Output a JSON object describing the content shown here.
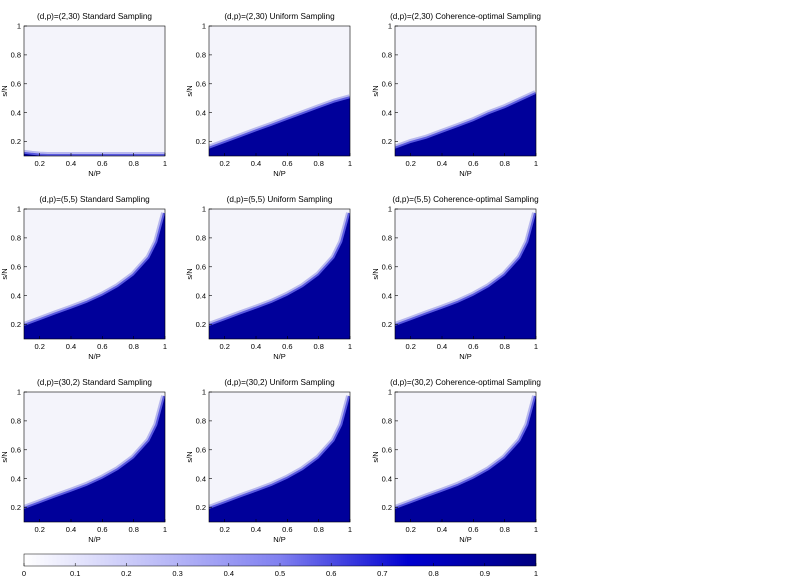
{
  "figure": {
    "colorbar_ticks": [
      "0",
      "0.1",
      "0.2",
      "0.3",
      "0.4",
      "0.5",
      "0.6",
      "0.7",
      "0.8",
      "0.9",
      "1"
    ],
    "colormap": {
      "low": "#ffffff",
      "high": "#000080"
    }
  },
  "chart_data": [
    {
      "type": "heatmap",
      "title": "(d,p)=(2,30) Standard Sampling",
      "xlabel": "N/P",
      "ylabel": "s/N",
      "xlim": [
        0.1,
        1
      ],
      "ylim": [
        0.1,
        1
      ],
      "xticks": [
        "0.2",
        "0.4",
        "0.6",
        "0.8",
        "1"
      ],
      "yticks": [
        "0.2",
        "0.4",
        "0.6",
        "0.8",
        "1"
      ],
      "recovery_boundary": {
        "x": [
          0.1,
          0.15,
          0.2,
          0.25,
          0.3,
          1.0
        ],
        "y": [
          0.115,
          0.108,
          0.103,
          0.1,
          0.1,
          0.1
        ]
      }
    },
    {
      "type": "heatmap",
      "title": "(d,p)=(2,30) Uniform Sampling",
      "xlabel": "N/P",
      "ylabel": "s/N",
      "xlim": [
        0.1,
        1
      ],
      "ylim": [
        0.1,
        1
      ],
      "xticks": [
        "0.2",
        "0.4",
        "0.6",
        "0.8",
        "1"
      ],
      "yticks": [
        "0.2",
        "0.4",
        "0.6",
        "0.8",
        "1"
      ],
      "recovery_boundary": {
        "x": [
          0.1,
          0.2,
          0.3,
          0.4,
          0.5,
          0.6,
          0.7,
          0.8,
          0.9,
          1.0
        ],
        "y": [
          0.15,
          0.19,
          0.23,
          0.27,
          0.31,
          0.35,
          0.39,
          0.43,
          0.47,
          0.5
        ]
      }
    },
    {
      "type": "heatmap",
      "title": "(d,p)=(2,30) Coherence-optimal Sampling",
      "xlabel": "N/P",
      "ylabel": "s/N",
      "xlim": [
        0.1,
        1
      ],
      "ylim": [
        0.1,
        1
      ],
      "xticks": [
        "0.2",
        "0.4",
        "0.6",
        "0.8",
        "1"
      ],
      "yticks": [
        "0.2",
        "0.4",
        "0.6",
        "0.8",
        "1"
      ],
      "recovery_boundary": {
        "x": [
          0.1,
          0.2,
          0.3,
          0.4,
          0.5,
          0.6,
          0.7,
          0.8,
          0.9,
          1.0
        ],
        "y": [
          0.15,
          0.19,
          0.22,
          0.26,
          0.3,
          0.34,
          0.39,
          0.43,
          0.48,
          0.53
        ]
      }
    },
    {
      "type": "heatmap",
      "title": "(d,p)=(5,5) Standard Sampling",
      "xlabel": "N/P",
      "ylabel": "s/N",
      "xlim": [
        0.1,
        1
      ],
      "ylim": [
        0.1,
        1
      ],
      "xticks": [
        "0.2",
        "0.4",
        "0.6",
        "0.8",
        "1"
      ],
      "yticks": [
        "0.2",
        "0.4",
        "0.6",
        "0.8",
        "1"
      ],
      "recovery_boundary": {
        "x": [
          0.1,
          0.2,
          0.3,
          0.4,
          0.5,
          0.6,
          0.7,
          0.8,
          0.9,
          0.95,
          1.0
        ],
        "y": [
          0.19,
          0.23,
          0.27,
          0.31,
          0.35,
          0.4,
          0.46,
          0.54,
          0.66,
          0.77,
          0.97
        ]
      }
    },
    {
      "type": "heatmap",
      "title": "(d,p)=(5,5) Uniform Sampling",
      "xlabel": "N/P",
      "ylabel": "s/N",
      "xlim": [
        0.1,
        1
      ],
      "ylim": [
        0.1,
        1
      ],
      "xticks": [
        "0.2",
        "0.4",
        "0.6",
        "0.8",
        "1"
      ],
      "yticks": [
        "0.2",
        "0.4",
        "0.6",
        "0.8",
        "1"
      ],
      "recovery_boundary": {
        "x": [
          0.1,
          0.2,
          0.3,
          0.4,
          0.5,
          0.6,
          0.7,
          0.8,
          0.9,
          0.95,
          1.0
        ],
        "y": [
          0.19,
          0.23,
          0.27,
          0.31,
          0.35,
          0.4,
          0.46,
          0.54,
          0.66,
          0.77,
          0.97
        ]
      }
    },
    {
      "type": "heatmap",
      "title": "(d,p)=(5,5) Coherence-optimal Sampling",
      "xlabel": "N/P",
      "ylabel": "s/N",
      "xlim": [
        0.1,
        1
      ],
      "ylim": [
        0.1,
        1
      ],
      "xticks": [
        "0.2",
        "0.4",
        "0.6",
        "0.8",
        "1"
      ],
      "yticks": [
        "0.2",
        "0.4",
        "0.6",
        "0.8",
        "1"
      ],
      "recovery_boundary": {
        "x": [
          0.1,
          0.2,
          0.3,
          0.4,
          0.5,
          0.6,
          0.7,
          0.8,
          0.9,
          0.95,
          1.0
        ],
        "y": [
          0.19,
          0.23,
          0.27,
          0.31,
          0.35,
          0.4,
          0.46,
          0.54,
          0.66,
          0.77,
          0.97
        ]
      }
    },
    {
      "type": "heatmap",
      "title": "(d,p)=(30,2) Standard Sampling",
      "xlabel": "N/P",
      "ylabel": "s/N",
      "xlim": [
        0.1,
        1
      ],
      "ylim": [
        0.1,
        1
      ],
      "xticks": [
        "0.2",
        "0.4",
        "0.6",
        "0.8",
        "1"
      ],
      "yticks": [
        "0.2",
        "0.4",
        "0.6",
        "0.8",
        "1"
      ],
      "recovery_boundary": {
        "x": [
          0.1,
          0.2,
          0.3,
          0.4,
          0.5,
          0.6,
          0.7,
          0.8,
          0.9,
          0.95,
          1.0
        ],
        "y": [
          0.19,
          0.23,
          0.27,
          0.31,
          0.35,
          0.4,
          0.46,
          0.54,
          0.66,
          0.77,
          0.97
        ]
      }
    },
    {
      "type": "heatmap",
      "title": "(d,p)=(30,2) Uniform Sampling",
      "xlabel": "N/P",
      "ylabel": "s/N",
      "xlim": [
        0.1,
        1
      ],
      "ylim": [
        0.1,
        1
      ],
      "xticks": [
        "0.2",
        "0.4",
        "0.6",
        "0.8",
        "1"
      ],
      "yticks": [
        "0.2",
        "0.4",
        "0.6",
        "0.8",
        "1"
      ],
      "recovery_boundary": {
        "x": [
          0.1,
          0.2,
          0.3,
          0.4,
          0.5,
          0.6,
          0.7,
          0.8,
          0.9,
          0.95,
          1.0
        ],
        "y": [
          0.19,
          0.23,
          0.27,
          0.31,
          0.35,
          0.4,
          0.46,
          0.54,
          0.66,
          0.77,
          0.97
        ]
      }
    },
    {
      "type": "heatmap",
      "title": "(d,p)=(30,2) Coherence-optimal Sampling",
      "xlabel": "N/P",
      "ylabel": "s/N",
      "xlim": [
        0.1,
        1
      ],
      "ylim": [
        0.1,
        1
      ],
      "xticks": [
        "0.2",
        "0.4",
        "0.6",
        "0.8",
        "1"
      ],
      "yticks": [
        "0.2",
        "0.4",
        "0.6",
        "0.8",
        "1"
      ],
      "recovery_boundary": {
        "x": [
          0.1,
          0.2,
          0.3,
          0.4,
          0.5,
          0.6,
          0.7,
          0.8,
          0.9,
          0.95,
          1.0
        ],
        "y": [
          0.19,
          0.23,
          0.27,
          0.31,
          0.35,
          0.4,
          0.46,
          0.54,
          0.66,
          0.77,
          0.97
        ]
      }
    }
  ]
}
